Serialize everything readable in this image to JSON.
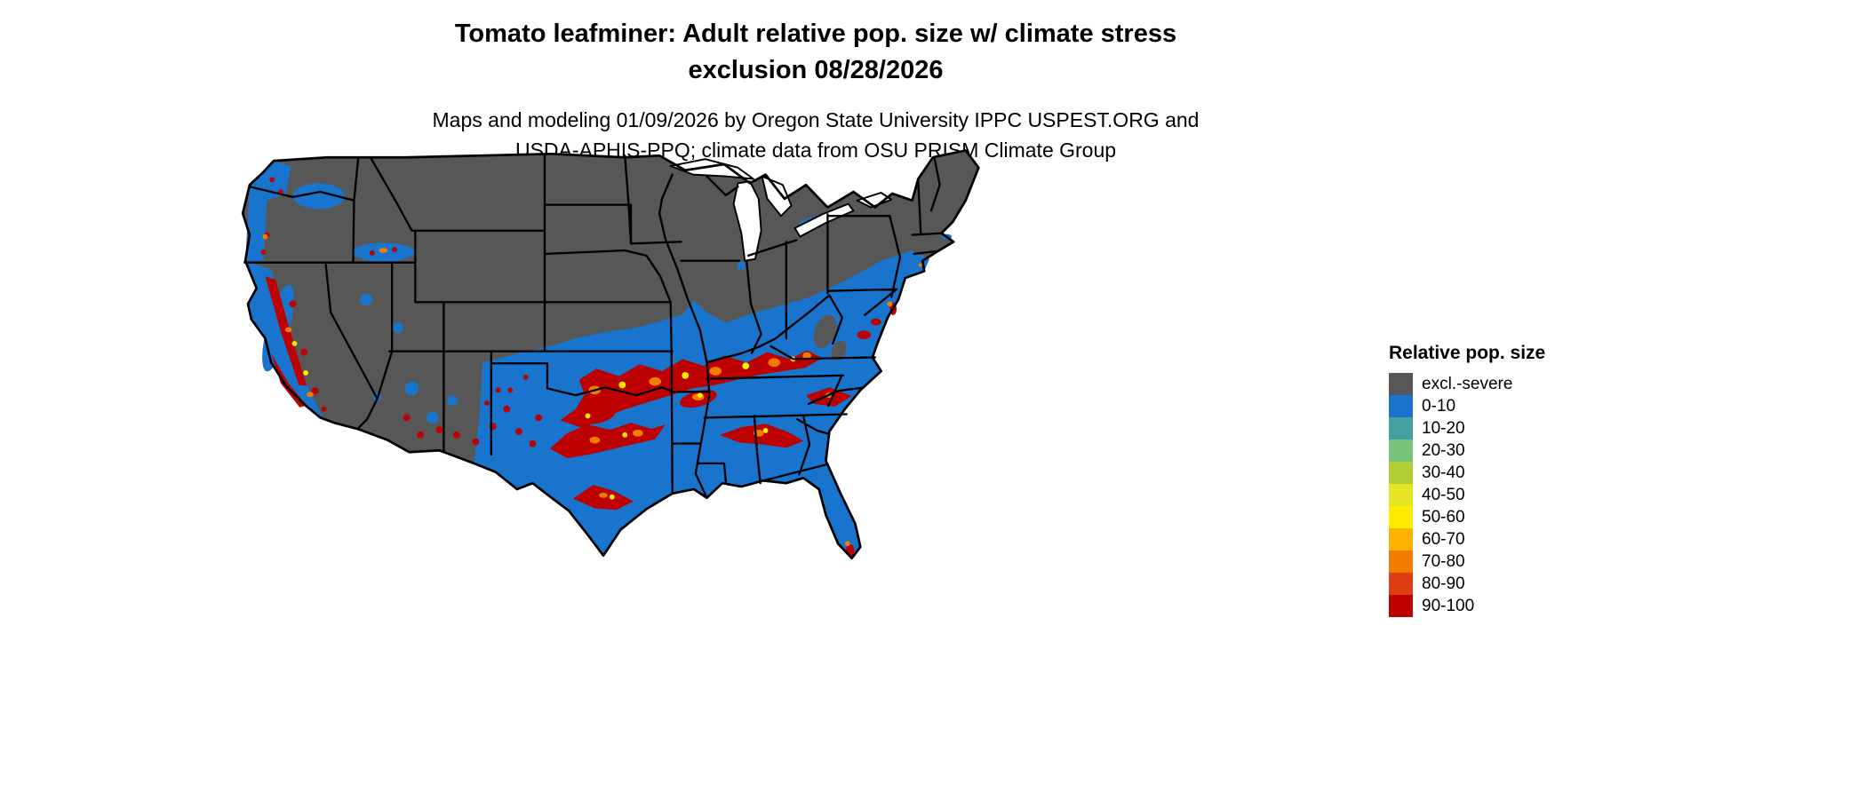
{
  "header": {
    "title_lines": [
      "Tomato leafminer: Adult relative pop. size w/ climate stress",
      "exclusion 08/28/2026"
    ],
    "subtitle_lines": [
      "Maps and modeling 01/09/2026 by Oregon State University IPPC USPEST.ORG and",
      "USDA-APHIS-PPQ; climate data from OSU PRISM Climate Group"
    ]
  },
  "legend": {
    "title": "Relative pop. size",
    "items": [
      {
        "label": "excl.-severe",
        "color": "#575757"
      },
      {
        "label": "0-10",
        "color": "#1874CD"
      },
      {
        "label": "10-20",
        "color": "#44A0A0"
      },
      {
        "label": "20-30",
        "color": "#77C379"
      },
      {
        "label": "30-40",
        "color": "#AFCE33"
      },
      {
        "label": "40-50",
        "color": "#E4E625"
      },
      {
        "label": "50-60",
        "color": "#FFEB00"
      },
      {
        "label": "60-70",
        "color": "#FFB300"
      },
      {
        "label": "70-80",
        "color": "#F27C00"
      },
      {
        "label": "80-90",
        "color": "#DE3F12"
      },
      {
        "label": "90-100",
        "color": "#BD0000"
      }
    ]
  },
  "map": {
    "region": "Contiguous United States",
    "colors": {
      "excluded_severe": "#575757",
      "low_population": "#1874CD",
      "high_population": "#BD0000",
      "water": "#FFFFFF",
      "state_border": "#000000"
    }
  }
}
